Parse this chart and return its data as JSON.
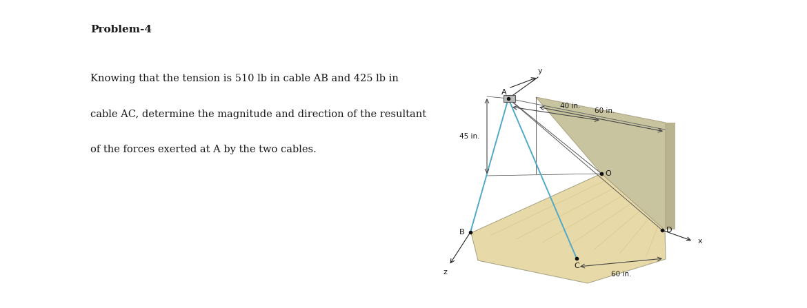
{
  "title": "Problem-4",
  "line1": "Knowing that the tension is 510 lb in cable AB and 425 lb in",
  "line2": "cable AC, determine the magnitude and direction of the resultant",
  "line3": "of the forces exerted at A by the two cables.",
  "bg_color": "#ffffff",
  "gray_margin": "#d0d0d0",
  "text_color": "#1a1a1a",
  "cable_color": "#4fa8c8",
  "wood_light": "#e8d9a8",
  "wood_mid": "#d8c888",
  "wood_dark": "#c8b870",
  "wall_face": "#c8c4a0",
  "wall_edge": "#b0a888",
  "wall_side": "#b8b490",
  "dim_color": "#444444",
  "frame_color": "#666666",
  "label_fs": 7.5,
  "title_fs": 11,
  "body_fs": 10.5
}
